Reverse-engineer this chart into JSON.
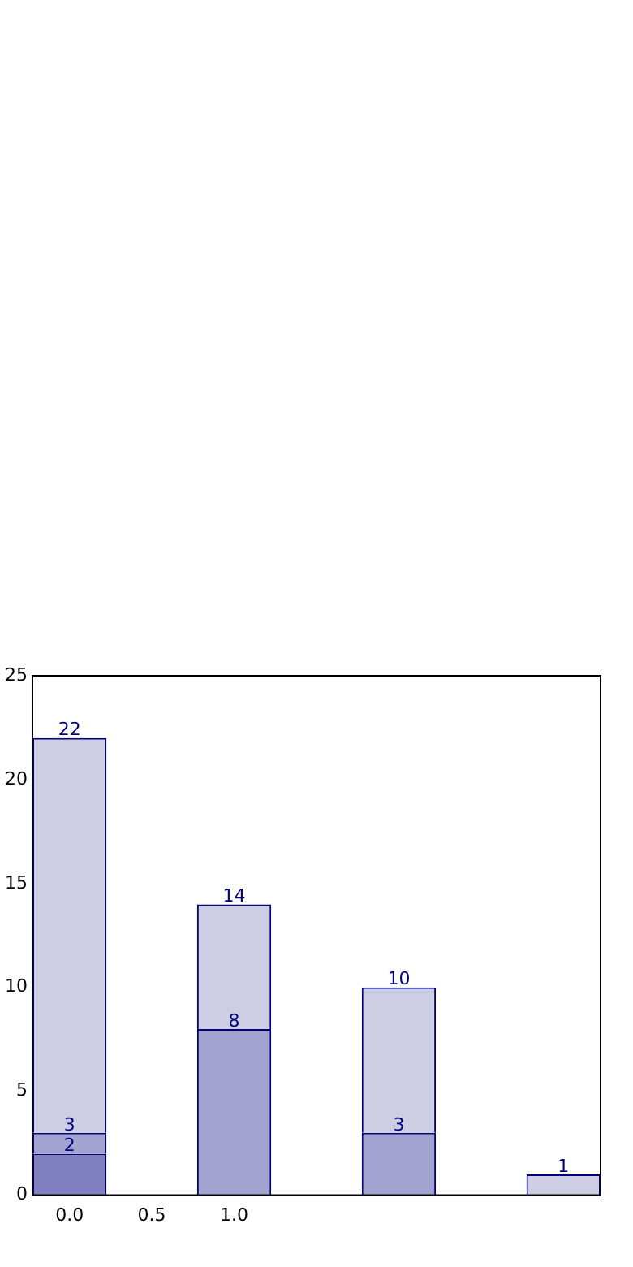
{
  "chart_data": {
    "type": "bar",
    "stacked": true,
    "x": [
      0,
      1,
      2,
      3
    ],
    "series": [
      {
        "color": "#8080c0",
        "values": [
          2,
          null,
          null,
          null
        ]
      },
      {
        "color": "#a3a3d1",
        "values": [
          1,
          8,
          3,
          null
        ]
      },
      {
        "color": "#cdcde4",
        "values": [
          19,
          6,
          7,
          1
        ]
      }
    ],
    "annotations": [
      {
        "text": "2",
        "x": 0,
        "y": 2
      },
      {
        "text": "3",
        "x": 0,
        "y": 3
      },
      {
        "text": "22",
        "x": 0,
        "y": 22
      },
      {
        "text": "8",
        "x": 1,
        "y": 8
      },
      {
        "text": "14",
        "x": 1,
        "y": 14
      },
      {
        "text": "3",
        "x": 2,
        "y": 3
      },
      {
        "text": "10",
        "x": 2,
        "y": 10
      },
      {
        "text": "1",
        "x": 3,
        "y": 1
      }
    ],
    "xlim": [
      -0.225,
      3.225
    ],
    "xticks": [
      {
        "value": 0,
        "label": "0.0"
      },
      {
        "value": 0.5,
        "label": "0.5"
      },
      {
        "value": 1,
        "label": "1.0"
      }
    ],
    "ylim": [
      0,
      25
    ],
    "yticks": [
      0,
      5,
      10,
      15,
      20,
      25
    ],
    "grid": false,
    "legend": false
  }
}
